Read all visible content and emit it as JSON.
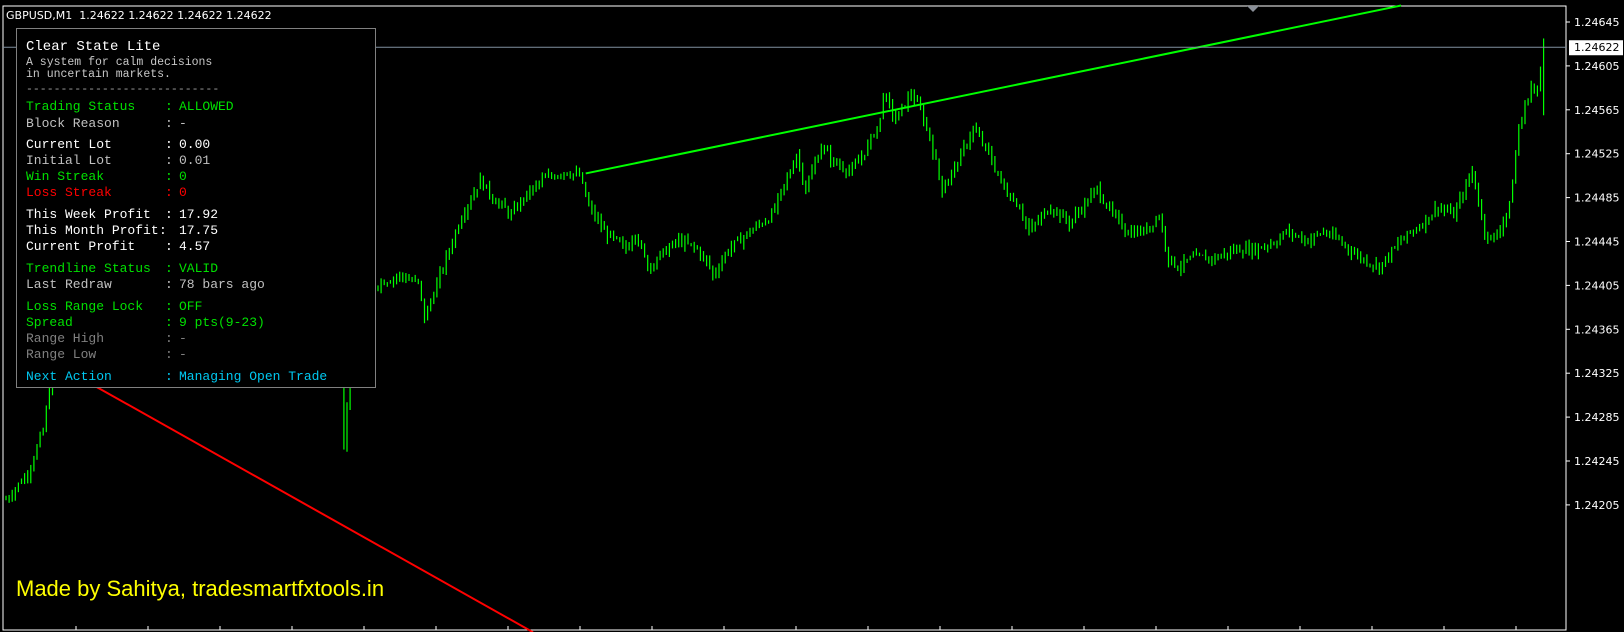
{
  "header": {
    "symbol": "GBPUSD,M1",
    "ohlc": "1.24622 1.24622 1.24622 1.24622"
  },
  "panel": {
    "title": "Clear State Lite",
    "subtitle_line1": "A system for calm decisions",
    "subtitle_line2": "in uncertain markets.",
    "divider": "----------------------------",
    "rows": [
      {
        "label": "Trading Status",
        "value": "ALLOWED",
        "color": "#00e000"
      },
      {
        "label": "Block Reason",
        "value": "-",
        "color": "#c0c0c0"
      },
      {
        "label": "Current Lot",
        "value": "0.00",
        "color": "#ffffff"
      },
      {
        "label": "Initial Lot",
        "value": "0.01",
        "color": "#c0c0c0"
      },
      {
        "label": "Win Streak",
        "value": "0",
        "color": "#00e000"
      },
      {
        "label": "Loss Streak",
        "value": "0",
        "color": "#ff0000"
      },
      {
        "label": "This Week Profit",
        "value": "17.92",
        "color": "#ffffff"
      },
      {
        "label": "This Month Profit",
        "value": "17.75",
        "color": "#ffffff",
        "tight": true
      },
      {
        "label": "Current Profit",
        "value": "4.57",
        "color": "#ffffff"
      },
      {
        "label": "Trendline Status",
        "value": "VALID",
        "color": "#00e000"
      },
      {
        "label": "Last Redraw",
        "value": "78 bars ago",
        "color": "#c0c0c0"
      },
      {
        "label": "Loss Range Lock",
        "value": "OFF",
        "color": "#00e000"
      },
      {
        "label": "Spread",
        "value": "9 pts(9-23)",
        "color": "#00e000"
      },
      {
        "label": "Range High",
        "value": "-",
        "color": "#808080"
      },
      {
        "label": "Range Low",
        "value": "-",
        "color": "#808080"
      },
      {
        "label": "Next Action",
        "value": "Managing Open Trade",
        "color": "#00c8f0"
      }
    ]
  },
  "credit": "Made by Sahitya, tradesmartfxtools.in",
  "chart_data": {
    "type": "ohlc",
    "symbol": "GBPUSD",
    "timeframe": "M1",
    "current_price": 1.24622,
    "ylim": [
      1.2419,
      1.2466
    ],
    "y_ticks": [
      "1.24645",
      "1.24605",
      "1.24565",
      "1.24525",
      "1.24485",
      "1.24445",
      "1.24405",
      "1.24365",
      "1.24325",
      "1.24285",
      "1.24245",
      "1.24205"
    ],
    "bar_color": "#00ff00",
    "close_samples_bar_index_price": [
      [
        0,
        1.2421
      ],
      [
        7,
        1.24234
      ],
      [
        12,
        1.24273
      ],
      [
        15,
        1.24328
      ],
      [
        17,
        1.24359
      ],
      [
        20,
        1.24391
      ],
      [
        27,
        1.24391
      ],
      [
        33,
        1.24407
      ],
      [
        40,
        1.24399
      ],
      [
        47,
        1.24414
      ],
      [
        48,
        1.24367
      ],
      [
        53,
        1.24399
      ],
      [
        70,
        1.244
      ],
      [
        90,
        1.244
      ],
      [
        105,
        1.24391
      ],
      [
        108,
        1.24352
      ],
      [
        109,
        1.2426
      ],
      [
        111,
        1.2434
      ],
      [
        113,
        1.24391
      ],
      [
        120,
        1.24407
      ],
      [
        127,
        1.24414
      ],
      [
        133,
        1.24407
      ],
      [
        135,
        1.24375
      ],
      [
        140,
        1.24414
      ],
      [
        147,
        1.24469
      ],
      [
        153,
        1.24501
      ],
      [
        157,
        1.24485
      ],
      [
        163,
        1.24469
      ],
      [
        167,
        1.24485
      ],
      [
        173,
        1.24501
      ],
      [
        180,
        1.24509
      ],
      [
        185,
        1.24505
      ],
      [
        188,
        1.24477
      ],
      [
        193,
        1.24454
      ],
      [
        200,
        1.24438
      ],
      [
        203,
        1.24454
      ],
      [
        207,
        1.24422
      ],
      [
        210,
        1.2443
      ],
      [
        217,
        1.24446
      ],
      [
        223,
        1.24438
      ],
      [
        227,
        1.24422
      ],
      [
        228,
        1.24414
      ],
      [
        233,
        1.24438
      ],
      [
        240,
        1.24454
      ],
      [
        247,
        1.24469
      ],
      [
        253,
        1.24509
      ],
      [
        255,
        1.24525
      ],
      [
        258,
        1.24493
      ],
      [
        263,
        1.24532
      ],
      [
        267,
        1.24517
      ],
      [
        273,
        1.24509
      ],
      [
        278,
        1.24532
      ],
      [
        282,
        1.24556
      ],
      [
        283,
        1.2458
      ],
      [
        287,
        1.24556
      ],
      [
        292,
        1.2458
      ],
      [
        295,
        1.24564
      ],
      [
        298,
        1.2454
      ],
      [
        302,
        1.24493
      ],
      [
        307,
        1.24517
      ],
      [
        312,
        1.24548
      ],
      [
        317,
        1.24525
      ],
      [
        322,
        1.24493
      ],
      [
        327,
        1.24477
      ],
      [
        330,
        1.24454
      ],
      [
        337,
        1.24477
      ],
      [
        343,
        1.24462
      ],
      [
        352,
        1.24493
      ],
      [
        357,
        1.24469
      ],
      [
        362,
        1.24454
      ],
      [
        367,
        1.24454
      ],
      [
        372,
        1.24469
      ],
      [
        375,
        1.2443
      ],
      [
        378,
        1.24422
      ],
      [
        383,
        1.2443
      ],
      [
        390,
        1.2443
      ],
      [
        397,
        1.24438
      ],
      [
        403,
        1.24438
      ],
      [
        410,
        1.24446
      ],
      [
        413,
        1.24454
      ],
      [
        420,
        1.24446
      ],
      [
        425,
        1.24454
      ],
      [
        430,
        1.24446
      ],
      [
        437,
        1.2443
      ],
      [
        443,
        1.24422
      ],
      [
        450,
        1.24446
      ],
      [
        457,
        1.24462
      ],
      [
        462,
        1.24477
      ],
      [
        467,
        1.24469
      ],
      [
        473,
        1.24509
      ],
      [
        477,
        1.24454
      ],
      [
        480,
        1.24446
      ],
      [
        485,
        1.24477
      ],
      [
        488,
        1.24548
      ],
      [
        492,
        1.24587
      ],
      [
        494,
        1.2458
      ],
      [
        496,
        1.24622
      ]
    ],
    "trendlines": [
      {
        "color": "#00ff00",
        "from": [
          187,
          1.24507
        ],
        "to": [
          450,
          1.2466
        ]
      },
      {
        "color": "#ff0000",
        "from": [
          27,
          1.24316
        ],
        "to": [
          170,
          1.24089
        ]
      }
    ]
  }
}
